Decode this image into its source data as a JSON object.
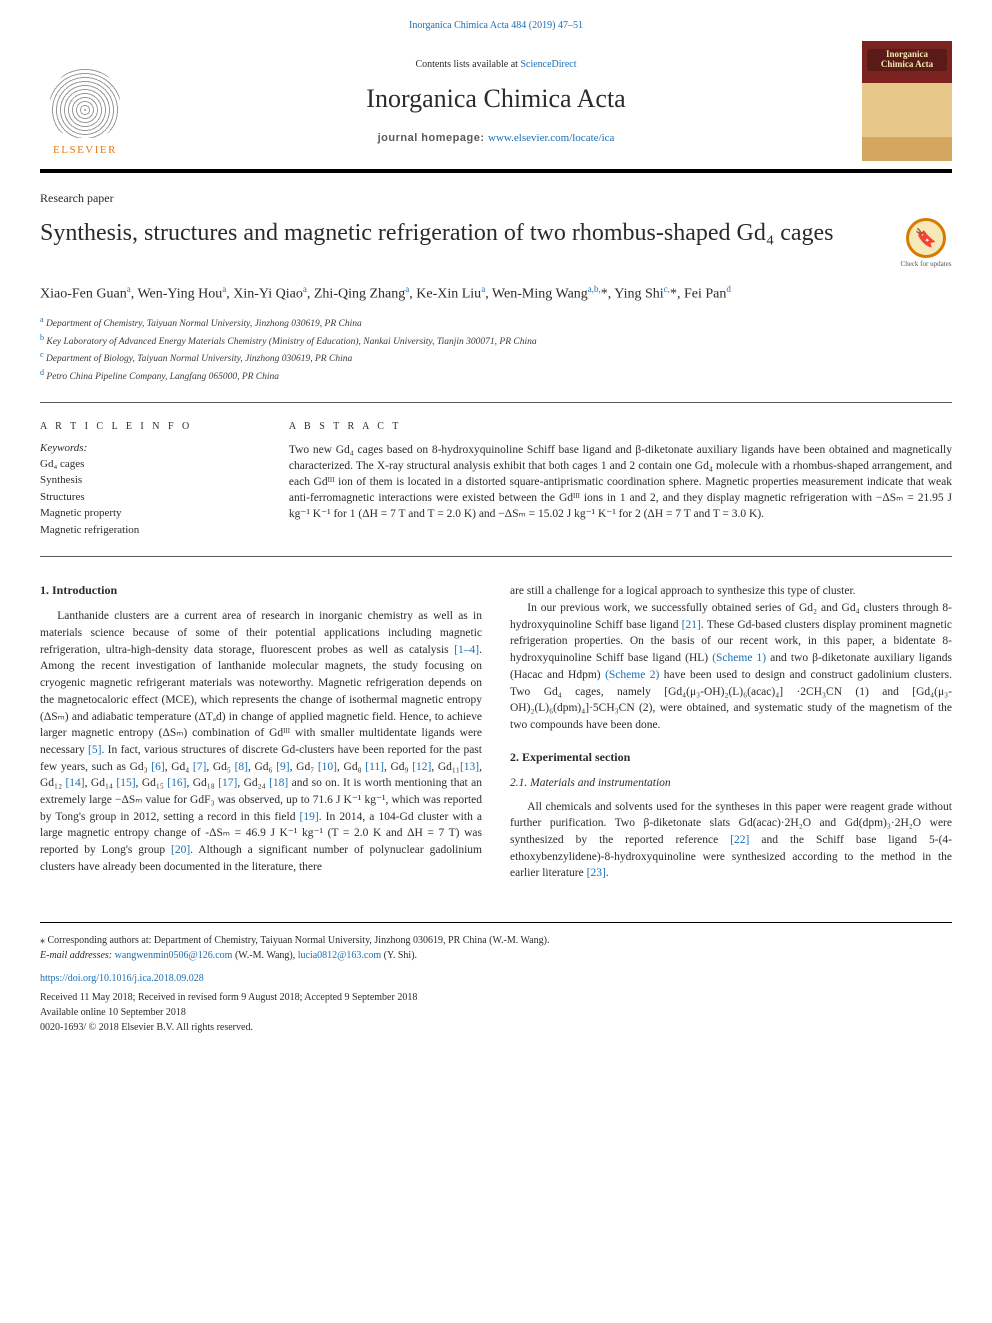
{
  "top_link": "Inorganica Chimica Acta 484 (2019) 47–51",
  "masthead": {
    "contents_prefix": "Contents lists available at ",
    "contents_link": "ScienceDirect",
    "journal_name": "Inorganica Chimica Acta",
    "homepage_label": "journal homepage: ",
    "homepage_url": "www.elsevier.com/locate/ica",
    "elsevier_text": "ELSEVIER",
    "cover_line1": "Inorganica",
    "cover_line2": "Chimica Acta"
  },
  "paper_type": "Research paper",
  "title": "Synthesis, structures and magnetic refrigeration of two rhombus-shaped Gd₄ cages",
  "updates_badge": "Check for updates",
  "authors_html": "Xiao-Fen Guan<sup>a</sup>, Wen-Ying Hou<sup>a</sup>, Xin-Yi Qiao<sup>a</sup>, Zhi-Qing Zhang<sup>a</sup>, Ke-Xin Liu<sup>a</sup>, Wen-Ming Wang<sup>a,b,</sup>*, Ying Shi<sup>c,</sup>*, Fei Pan<sup>d</sup>",
  "affiliations": {
    "a": "Department of Chemistry, Taiyuan Normal University, Jinzhong 030619, PR China",
    "b": "Key Laboratory of Advanced Energy Materials Chemistry (Ministry of Education), Nankai University, Tianjin 300071, PR China",
    "c": "Department of Biology, Taiyuan Normal University, Jinzhong 030619, PR China",
    "d": "Petro China Pipeline Company, Langfang 065000, PR China"
  },
  "article_info": {
    "heading": "A R T I C L E  I N F O",
    "keywords_label": "Keywords:",
    "keywords": [
      "Gd₄ cages",
      "Synthesis",
      "Structures",
      "Magnetic property",
      "Magnetic refrigeration"
    ]
  },
  "abstract": {
    "heading": "A B S T R A C T",
    "text": "Two new Gd₄ cages based on 8-hydroxyquinoline Schiff base ligand and β-diketonate auxiliary ligands have been obtained and magnetically characterized. The X-ray structural analysis exhibit that both cages 1 and 2 contain one Gd₄ molecule with a rhombus-shaped arrangement, and each Gdᴵᴵᴵ ion of them is located in a distorted square-antiprismatic coordination sphere. Magnetic properties measurement indicate that weak anti-ferromagnetic interactions were existed between the Gdᴵᴵᴵ ions in 1 and 2, and they display magnetic refrigeration with −ΔSₘ = 21.95 J kg⁻¹ K⁻¹ for 1 (ΔH = 7 T and T = 2.0 K) and −ΔSₘ = 15.02 J kg⁻¹ K⁻¹ for 2 (ΔH = 7 T and T = 3.0 K)."
  },
  "body": {
    "intro_heading": "1. Introduction",
    "intro_p1": "Lanthanide clusters are a current area of research in inorganic chemistry as well as in materials science because of some of their potential applications including magnetic refrigeration, ultra-high-density data storage, fluorescent probes as well as catalysis [1–4]. Among the recent investigation of lanthanide molecular magnets, the study focusing on cryogenic magnetic refrigerant materials was noteworthy. Magnetic refrigeration depends on the magnetocaloric effect (MCE), which represents the change of isothermal magnetic entropy (ΔSₘ) and adiabatic temperature (ΔTₐd) in change of applied magnetic field. Hence, to achieve larger magnetic entropy (ΔSₘ) combination of Gdᴵᴵᴵ with smaller multidentate ligands were necessary [5]. In fact, various structures of discrete Gd-clusters have been reported for the past few years, such as Gd₃ [6], Gd₄ [7], Gd₅ [8], Gd₆ [9], Gd₇ [10], Gd₈ [11], Gd₉ [12], Gd₁₁[13], Gd₁₂ [14], Gd₁₄ [15], Gd₁₅ [16], Gd₁₈ [17], Gd₂₄ [18] and so on. It is worth mentioning that an extremely large −ΔSₘ value for GdF₃ was observed, up to 71.6 J K⁻¹ kg⁻¹, which was reported by Tong's group in 2012, setting a record in this field [19]. In 2014, a 104-Gd cluster with a large magnetic entropy change of -ΔSₘ = 46.9 J K⁻¹ kg⁻¹ (T = 2.0 K and ΔH = 7 T) was reported by Long's group [20]. Although a significant number of polynuclear gadolinium clusters have already been documented in the literature, there",
    "col2_p1": "are still a challenge for a logical approach to synthesize this type of cluster.",
    "col2_p2": "In our previous work, we successfully obtained series of Gd₂ and Gd₄ clusters through 8-hydroxyquinoline Schiff base ligand [21]. These Gd-based clusters display prominent magnetic refrigeration properties. On the basis of our recent work, in this paper, a bidentate 8-hydroxyquinoline Schiff base ligand (HL) (Scheme 1) and two β-diketonate auxiliary ligands (Hacac and Hdpm) (Scheme 2) have been used to design and construct gadolinium clusters. Two Gd₄ cages, namely [Gd₄(μ₃-OH)₂(L)₆(acac)₄] ·2CH₃CN (1) and [Gd₄(μ₃-OH)₂(L)₆(dpm)₄]·5CH₃CN (2), were obtained, and systematic study of the magnetism of the two compounds have been done.",
    "exp_heading": "2. Experimental section",
    "exp_sub": "2.1. Materials and instrumentation",
    "exp_p1": "All chemicals and solvents used for the syntheses in this paper were reagent grade without further purification. Two β-diketonate slats Gd(acac)·2H₂O and Gd(dpm)₃·2H₂O were synthesized by the reported reference [22] and the Schiff base ligand 5-(4-ethoxybenzylidene)-8-hydroxyquinoline were synthesized according to the method in the earlier literature [23]."
  },
  "footer": {
    "corresponding": "⁎ Corresponding authors at: Department of Chemistry, Taiyuan Normal University, Jinzhong 030619, PR China (W.-M. Wang).",
    "email_label": "E-mail addresses: ",
    "email1": "wangwenmin0506@126.com",
    "email1_name": " (W.-M. Wang), ",
    "email2": "lucia0812@163.com",
    "email2_name": " (Y. Shi).",
    "doi": "https://doi.org/10.1016/j.ica.2018.09.028",
    "dates": "Received 11 May 2018; Received in revised form 9 August 2018; Accepted 9 September 2018",
    "online": "Available online 10 September 2018",
    "issn": "0020-1693/ © 2018 Elsevier B.V. All rights reserved."
  },
  "colors": {
    "link": "#1a6fb5",
    "elsevier_orange": "#e67817",
    "cover_red": "#7a2320"
  }
}
